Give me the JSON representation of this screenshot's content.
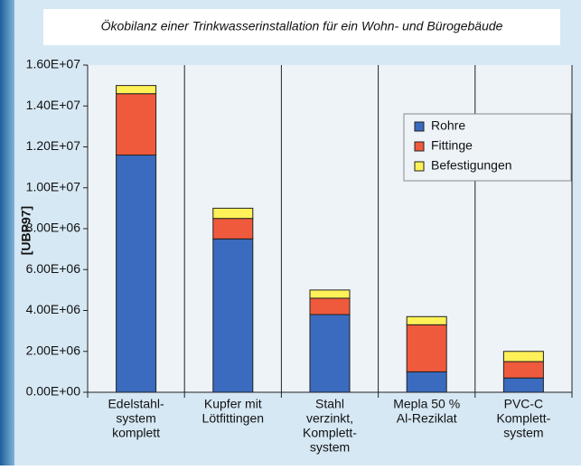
{
  "chart_data": {
    "type": "stacked_bar",
    "title": "Ökobilanz einer Trinkwasserinstallation für ein Wohn- und Bürogebäude",
    "y_label": "[UBP97]",
    "categories": [
      [
        "Edelstahl-",
        "system",
        "komplett"
      ],
      [
        "Kupfer mit",
        "Lötfittingen"
      ],
      [
        "Stahl",
        "verzinkt,",
        "Komplett-",
        "system"
      ],
      [
        "Mepla 50 %",
        "Al-Reziklat"
      ],
      [
        "PVC-C",
        "Komplett-",
        "system"
      ]
    ],
    "series": [
      {
        "name": "Rohre",
        "color": "#3a6bbf",
        "values": [
          11600000,
          7500000,
          3800000,
          1000000,
          700000
        ]
      },
      {
        "name": "Fittinge",
        "color": "#f05a3c",
        "values": [
          3000000,
          1000000,
          800000,
          2300000,
          800000
        ]
      },
      {
        "name": "Befestigungen",
        "color": "#fff157",
        "values": [
          400000,
          500000,
          400000,
          400000,
          500000
        ]
      }
    ],
    "ylim": [
      0,
      16000000
    ],
    "yticks": [
      {
        "value": 0,
        "label": "0.00E+00"
      },
      {
        "value": 2000000,
        "label": "2.00E+06"
      },
      {
        "value": 4000000,
        "label": "4.00E+06"
      },
      {
        "value": 6000000,
        "label": "6.00E+06"
      },
      {
        "value": 8000000,
        "label": "8.00E+06"
      },
      {
        "value": 10000000,
        "label": "1.00E+07"
      },
      {
        "value": 12000000,
        "label": "1.20E+07"
      },
      {
        "value": 14000000,
        "label": "1.40E+07"
      },
      {
        "value": 16000000,
        "label": "1.60E+07"
      }
    ],
    "legend_position": "upper right"
  }
}
